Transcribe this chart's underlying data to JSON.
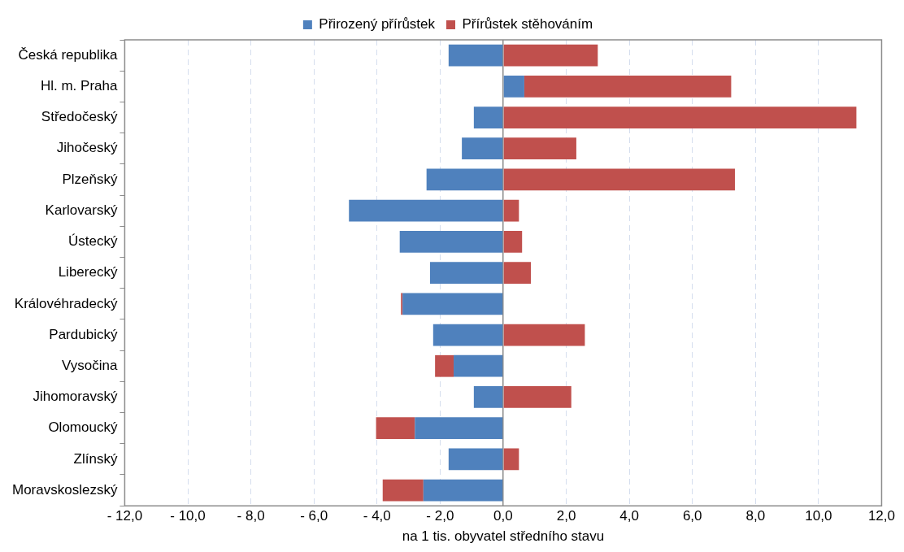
{
  "chart_data": {
    "type": "bar",
    "orientation": "horizontal",
    "stacked": true,
    "xlabel": "na 1 tis. obyvatel středního stavu",
    "categories": [
      "Česká republika",
      "Hl. m. Praha",
      "Středočeský",
      "Jihočeský",
      "Plzeňský",
      "Karlovarský",
      "Ústecký",
      "Liberecký",
      "Královéhradecký",
      "Pardubický",
      "Vysočina",
      "Jihomoravský",
      "Olomoucký",
      "Zlínský",
      "Moravskoslezský"
    ],
    "series": [
      {
        "name": "Přirozený přírůstek",
        "color": "#4f81bd",
        "values": [
          -1.73,
          0.67,
          -0.93,
          -1.31,
          -2.43,
          -4.89,
          -3.28,
          -2.32,
          -3.19,
          -2.22,
          -1.57,
          -0.93,
          -2.8,
          -1.73,
          -2.53
        ]
      },
      {
        "name": "Přírůstek stěhováním",
        "color": "#c0504d",
        "values": [
          3.0,
          6.56,
          11.2,
          2.32,
          7.35,
          0.5,
          0.6,
          0.88,
          -0.05,
          2.59,
          -0.59,
          2.16,
          -1.23,
          0.5,
          -1.29
        ]
      }
    ],
    "xlim": [
      -12,
      12
    ],
    "xticks": [
      {
        "value": -12,
        "label": "- 12,0"
      },
      {
        "value": -10,
        "label": "- 10,0"
      },
      {
        "value": -8,
        "label": "- 8,0"
      },
      {
        "value": -6,
        "label": "- 6,0"
      },
      {
        "value": -4,
        "label": "- 4,0"
      },
      {
        "value": -2,
        "label": "- 2,0"
      },
      {
        "value": 0,
        "label": "0,0"
      },
      {
        "value": 2,
        "label": "2,0"
      },
      {
        "value": 4,
        "label": "4,0"
      },
      {
        "value": 6,
        "label": "6,0"
      },
      {
        "value": 8,
        "label": "8,0"
      },
      {
        "value": 10,
        "label": "10,0"
      },
      {
        "value": 12,
        "label": "12,0"
      }
    ],
    "grid": "x",
    "legend": "top"
  }
}
